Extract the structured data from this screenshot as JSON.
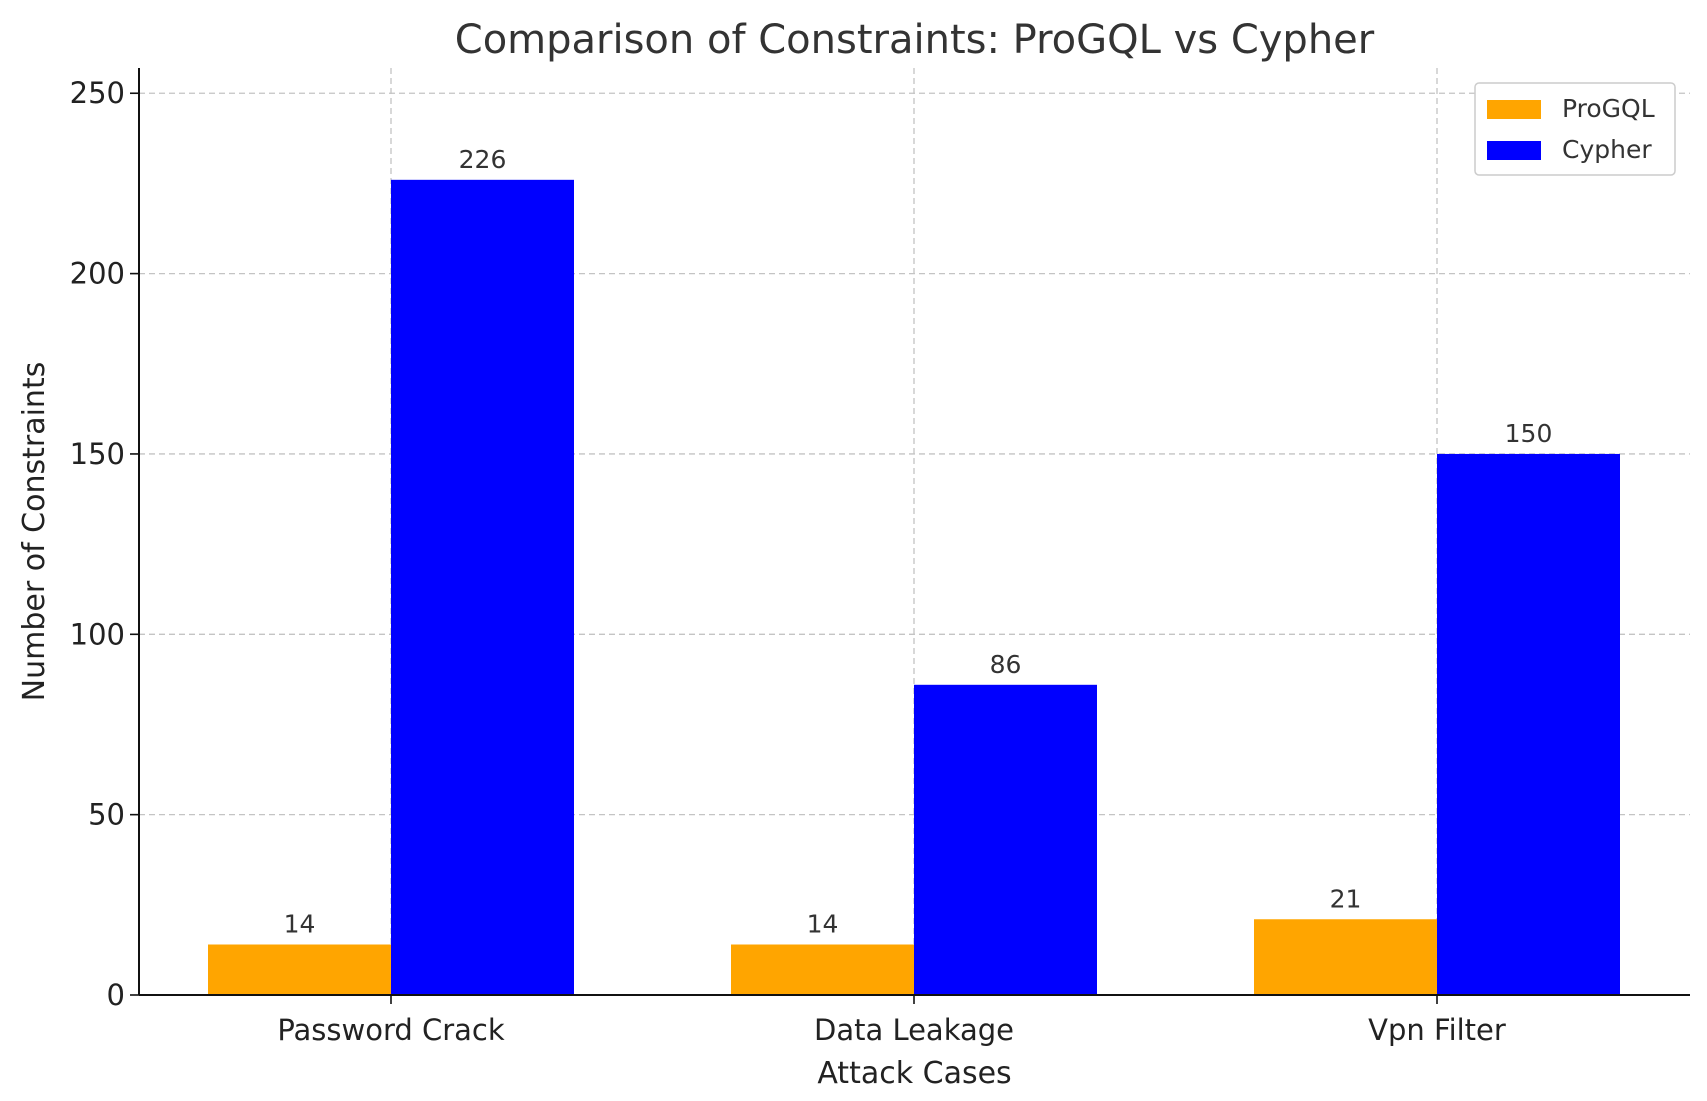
{
  "chart_data": {
    "type": "bar",
    "title": "Comparison of Constraints: ProGQL vs Cypher",
    "xlabel": "Attack Cases",
    "ylabel": "Number of Constraints",
    "categories": [
      "Password Crack",
      "Data Leakage",
      "Vpn Filter"
    ],
    "series": [
      {
        "name": "ProGQL",
        "values": [
          14,
          14,
          21
        ],
        "color": "#FFA500"
      },
      {
        "name": "Cypher",
        "values": [
          226,
          86,
          150
        ],
        "color": "#0000FF"
      }
    ],
    "ylim": [
      0,
      257
    ],
    "yticks": [
      0,
      50,
      100,
      150,
      200,
      250
    ],
    "grid": true,
    "legend_position": "top-right"
  }
}
